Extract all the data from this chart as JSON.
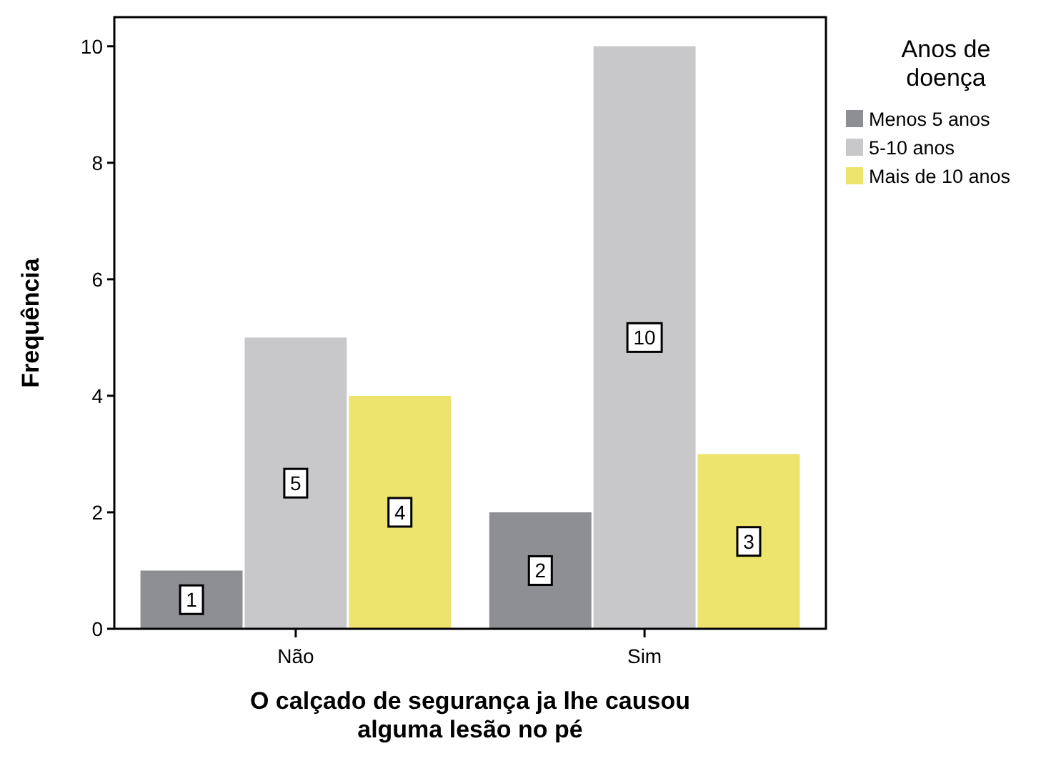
{
  "chart_data": {
    "type": "bar",
    "xlabel": "O calçado de segurança ja lhe causou alguma lesão no pé",
    "ylabel": "Frequência",
    "legend_title": "Anos de doença",
    "categories": [
      "Não",
      "Sim"
    ],
    "series": [
      {
        "name": "Menos 5 anos",
        "color": "#8e8f93",
        "values": [
          1,
          2
        ]
      },
      {
        "name": "5-10 anos",
        "color": "#c8c8cb",
        "values": [
          5,
          10
        ]
      },
      {
        "name": "Mais de 10 anos",
        "color": "#ede46e",
        "values": [
          4,
          3
        ]
      }
    ],
    "ylim": [
      0,
      10.5
    ],
    "yticks": [
      0,
      2,
      4,
      6,
      8,
      10
    ],
    "data_labels": true,
    "legend": "right",
    "grid": false
  }
}
